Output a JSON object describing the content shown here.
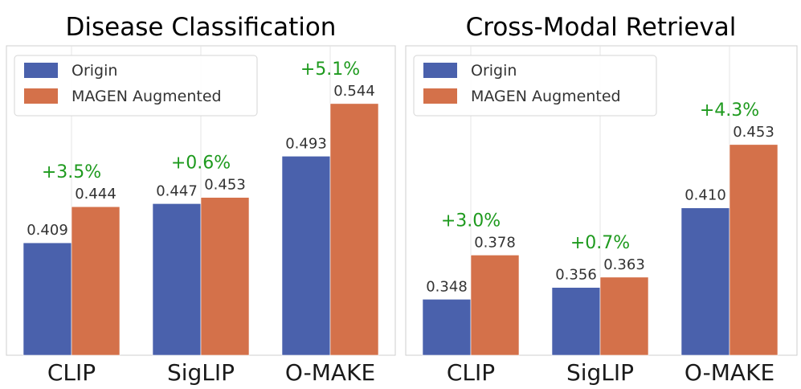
{
  "colors": {
    "origin": "#4a61ac",
    "augmented": "#d4714a",
    "improvement": "#1e9a1e",
    "grid": "#e4e4e4",
    "frame": "#cfcfcf"
  },
  "chart_data": [
    {
      "type": "bar",
      "title": "Disease Classification",
      "categories": [
        "CLIP",
        "SigLIP",
        "O-MAKE"
      ],
      "series": [
        {
          "name": "Origin",
          "values": [
            0.409,
            0.447,
            0.493
          ],
          "labels": [
            "0.409",
            "0.447",
            "0.493"
          ]
        },
        {
          "name": "MAGEN Augmented",
          "values": [
            0.444,
            0.453,
            0.544
          ],
          "labels": [
            "0.444",
            "0.453",
            "0.544"
          ]
        }
      ],
      "improvements": [
        "+3.5%",
        "+0.6%",
        "+5.1%"
      ],
      "ylim": [
        0.3,
        0.6
      ],
      "legend": "top-left",
      "grid": true
    },
    {
      "type": "bar",
      "title": "Cross-Modal Retrieval",
      "categories": [
        "CLIP",
        "SigLIP",
        "O-MAKE"
      ],
      "series": [
        {
          "name": "Origin",
          "values": [
            0.348,
            0.356,
            0.41
          ],
          "labels": [
            "0.348",
            "0.356",
            "0.410"
          ]
        },
        {
          "name": "MAGEN Augmented",
          "values": [
            0.378,
            0.363,
            0.453
          ],
          "labels": [
            "0.378",
            "0.363",
            "0.453"
          ]
        }
      ],
      "improvements": [
        "+3.0%",
        "+0.7%",
        "+4.3%"
      ],
      "ylim": [
        0.31,
        0.52
      ],
      "legend": "top-left",
      "grid": true
    }
  ]
}
